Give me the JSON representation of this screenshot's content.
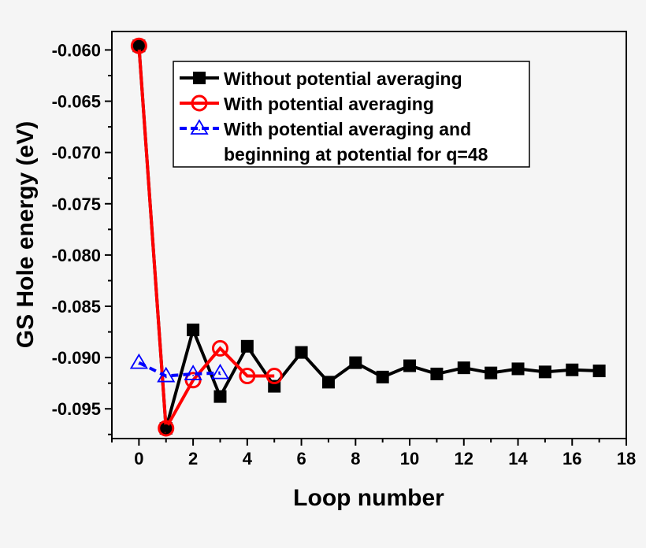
{
  "chart_data": {
    "type": "line",
    "title": "",
    "xlabel": "Loop number",
    "ylabel": "GS Hole energy (eV)",
    "xlim": [
      -1,
      18
    ],
    "ylim": [
      -0.0979,
      -0.0582
    ],
    "xticks": [
      "0",
      "2",
      "4",
      "6",
      "8",
      "10",
      "12",
      "14",
      "16",
      "18"
    ],
    "yticks": [
      "-0.060",
      "-0.065",
      "-0.070",
      "-0.075",
      "-0.080",
      "-0.085",
      "-0.090",
      "-0.095"
    ],
    "legend_position": "top-right",
    "series": [
      {
        "name": "Without potential averaging",
        "color": "#000000",
        "marker": "square",
        "x": [
          0,
          1,
          2,
          3,
          4,
          5,
          6,
          7,
          8,
          9,
          10,
          11,
          12,
          13,
          14,
          15,
          16,
          17
        ],
        "y": [
          -0.0596,
          -0.0969,
          -0.0873,
          -0.0938,
          -0.0889,
          -0.0928,
          -0.0895,
          -0.0924,
          -0.0905,
          -0.0919,
          -0.0908,
          -0.0916,
          -0.091,
          -0.0915,
          -0.0911,
          -0.0914,
          -0.0912,
          -0.0913
        ]
      },
      {
        "name": "With potential averaging",
        "color": "#ff0000",
        "marker": "circle",
        "x": [
          0,
          1,
          2,
          3,
          4,
          5
        ],
        "y": [
          -0.0596,
          -0.0969,
          -0.0922,
          -0.0891,
          -0.0918,
          -0.0918
        ]
      },
      {
        "name": "With potential averaging and",
        "name_line2": "beginning at potential for q=48",
        "color": "#0000ff",
        "marker": "triangle",
        "dashed": true,
        "x": [
          0,
          1,
          2,
          3
        ],
        "y": [
          -0.0905,
          -0.0918,
          -0.0916,
          -0.0915
        ]
      }
    ]
  }
}
